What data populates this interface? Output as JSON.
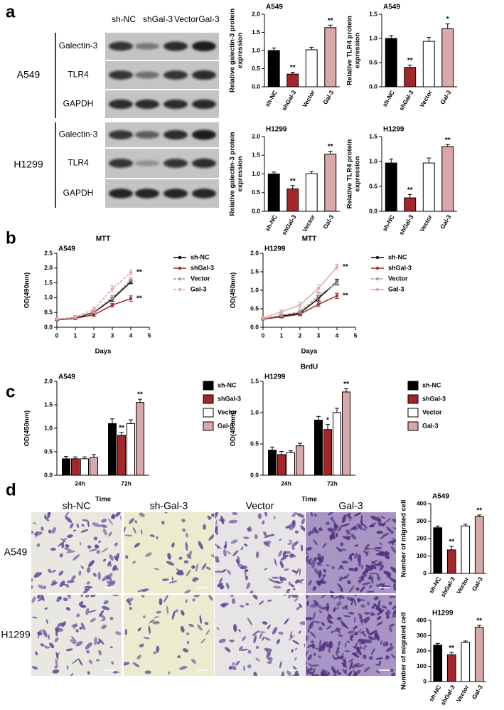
{
  "panels": {
    "a": {
      "letter": "a",
      "lanes": [
        "sh-NC",
        "shGal-3",
        "Vector",
        "Gal-3"
      ],
      "groups": [
        {
          "cell_line": "A549",
          "rows": [
            "Galectin-3",
            "TLR4",
            "GAPDH"
          ]
        },
        {
          "cell_line": "H1299",
          "rows": [
            "Galectin-3",
            "TLR4",
            "GAPDH"
          ]
        }
      ]
    },
    "b": {
      "letter": "b"
    },
    "c": {
      "letter": "c"
    },
    "d": {
      "letter": "d",
      "columns": [
        "sh-NC",
        "sh-Gal-3",
        "Vector",
        "Gal-3"
      ],
      "rows": [
        "A549",
        "H1299"
      ]
    }
  },
  "chart_data": [
    {
      "type": "bar",
      "title": "A549",
      "ylabel": [
        "Relative galectin-3 protein",
        "expression"
      ],
      "categories": [
        "sh-NC",
        "shGal-3",
        "Vector",
        "Gal-3"
      ],
      "values": [
        1.0,
        0.35,
        1.02,
        1.63
      ],
      "errors": [
        0.07,
        0.05,
        0.07,
        0.07
      ],
      "colors": [
        "#000000",
        "#a3262a",
        "#ffffff",
        "#d9a9a9"
      ],
      "ylim": [
        0,
        2
      ],
      "yticks": [
        {
          "value": 0,
          "label": "0.0"
        },
        0.5,
        {
          "value": 1,
          "label": "1.0"
        },
        1.5,
        {
          "value": 2,
          "label": "2.0"
        }
      ],
      "annotations": [
        {
          "index": 1,
          "text": "**"
        },
        {
          "index": 3,
          "text": "**"
        }
      ]
    },
    {
      "type": "bar",
      "title": "A549",
      "ylabel": [
        "Relative TLR4 protein",
        "expression"
      ],
      "categories": [
        "sh-NC",
        "shGal-3",
        "Vector",
        "Gal-3"
      ],
      "values": [
        1.0,
        0.4,
        0.94,
        1.2
      ],
      "errors": [
        0.06,
        0.05,
        0.08,
        0.1
      ],
      "colors": [
        "#000000",
        "#a3262a",
        "#ffffff",
        "#d9a9a9"
      ],
      "ylim": [
        0,
        1.5
      ],
      "yticks": [
        {
          "value": 0,
          "label": "0.0"
        },
        0.5,
        {
          "value": 1,
          "label": "1.0"
        },
        1.5
      ],
      "annotations": [
        {
          "index": 1,
          "text": "**"
        },
        {
          "index": 3,
          "text": "*"
        }
      ]
    },
    {
      "type": "bar",
      "title": "H1299",
      "ylabel": [
        "Relative galectin-3 protein",
        "expression"
      ],
      "categories": [
        "sh-NC",
        "shGal-3",
        "Vector",
        "Gal-3"
      ],
      "values": [
        1.0,
        0.6,
        1.01,
        1.53
      ],
      "errors": [
        0.05,
        0.09,
        0.05,
        0.08
      ],
      "colors": [
        "#000000",
        "#a3262a",
        "#ffffff",
        "#d9a9a9"
      ],
      "ylim": [
        0,
        2
      ],
      "yticks": [
        {
          "value": 0,
          "label": "0.0"
        },
        0.5,
        {
          "value": 1,
          "label": "1.0"
        },
        1.5,
        {
          "value": 2,
          "label": "2.0"
        }
      ],
      "annotations": [
        {
          "index": 1,
          "text": "**"
        },
        {
          "index": 3,
          "text": "**"
        }
      ]
    },
    {
      "type": "bar",
      "title": "H1299",
      "ylabel": [
        "Relative TLR4 protein",
        "expression"
      ],
      "categories": [
        "sh-NC",
        "shGal-3",
        "Vector",
        "Gal-3"
      ],
      "values": [
        0.97,
        0.27,
        0.97,
        1.3
      ],
      "errors": [
        0.08,
        0.07,
        0.1,
        0.04
      ],
      "colors": [
        "#000000",
        "#a3262a",
        "#ffffff",
        "#d9a9a9"
      ],
      "ylim": [
        0,
        1.5
      ],
      "yticks": [
        {
          "value": 0,
          "label": "0.0"
        },
        0.5,
        {
          "value": 1,
          "label": "1.0"
        },
        1.5
      ],
      "annotations": [
        {
          "index": 1,
          "text": "**"
        },
        {
          "index": 3,
          "text": "**"
        }
      ]
    },
    {
      "type": "line",
      "title": "MTT",
      "subtitle": "A549",
      "xlabel": "Days",
      "ylabel": [
        "OD(490nm)"
      ],
      "x": [
        0,
        1,
        2,
        3,
        4
      ],
      "xlim": [
        0,
        5
      ],
      "xticks": [
        0,
        1,
        2,
        3,
        4,
        5
      ],
      "ylim": [
        0,
        2.5
      ],
      "yticks": [
        {
          "value": 0,
          "label": "0.0"
        },
        0.5,
        {
          "value": 1,
          "label": "1.0"
        },
        1.5,
        {
          "value": 2,
          "label": "2.0"
        },
        2.5
      ],
      "legend": "right",
      "series": [
        {
          "name": "sh-NC",
          "color": "#000000",
          "dash": false,
          "values": [
            0.25,
            0.3,
            0.5,
            0.95,
            1.53
          ],
          "errors": [
            0.02,
            0.03,
            0.05,
            0.07,
            0.06
          ]
        },
        {
          "name": "shGal-3",
          "color": "#a3262a",
          "dash": false,
          "values": [
            0.25,
            0.3,
            0.42,
            0.75,
            0.97
          ],
          "errors": [
            0.02,
            0.03,
            0.05,
            0.06,
            0.09
          ]
        },
        {
          "name": "Vector",
          "color": "#9a9a9a",
          "dash": true,
          "values": [
            0.27,
            0.33,
            0.52,
            1.0,
            1.6
          ],
          "errors": [
            0.02,
            0.03,
            0.05,
            0.07,
            0.08
          ]
        },
        {
          "name": "Gal-3",
          "color": "#e2a6a6",
          "dash": true,
          "values": [
            0.28,
            0.35,
            0.6,
            1.3,
            1.85
          ],
          "errors": [
            0.03,
            0.05,
            0.08,
            0.1,
            0.08
          ]
        }
      ],
      "annotations": [
        {
          "series": 3,
          "index": 4,
          "text": "**"
        },
        {
          "series": 1,
          "index": 4,
          "text": "**"
        }
      ]
    },
    {
      "type": "line",
      "title": "MTT",
      "subtitle": "H1299",
      "xlabel": "Days",
      "ylabel": [
        "OD(490nm)"
      ],
      "x": [
        0,
        1,
        2,
        3,
        4
      ],
      "xlim": [
        0,
        5
      ],
      "xticks": [
        0,
        1,
        2,
        3,
        4,
        5
      ],
      "ylim": [
        0,
        2
      ],
      "yticks": [
        {
          "value": 0,
          "label": "0.0"
        },
        0.5,
        {
          "value": 1,
          "label": "1.0"
        },
        1.5,
        {
          "value": 2,
          "label": "2.0"
        }
      ],
      "legend": "right",
      "series": [
        {
          "name": "sh-NC",
          "color": "#000000",
          "dash": false,
          "values": [
            0.22,
            0.3,
            0.38,
            0.78,
            1.23
          ],
          "errors": [
            0.02,
            0.03,
            0.04,
            0.07,
            0.07
          ]
        },
        {
          "name": "shGal-3",
          "color": "#a3262a",
          "dash": false,
          "values": [
            0.22,
            0.28,
            0.35,
            0.62,
            0.85
          ],
          "errors": [
            0.02,
            0.03,
            0.04,
            0.06,
            0.07
          ]
        },
        {
          "name": "Vector",
          "color": "#9a9a9a",
          "dash": true,
          "values": [
            0.23,
            0.32,
            0.42,
            0.85,
            1.2
          ],
          "errors": [
            0.02,
            0.03,
            0.05,
            0.08,
            0.07
          ]
        },
        {
          "name": "Gal-3",
          "color": "#e2a6a6",
          "dash": false,
          "values": [
            0.25,
            0.42,
            0.6,
            1.05,
            1.63
          ],
          "errors": [
            0.02,
            0.05,
            0.08,
            0.1,
            0.07
          ]
        }
      ],
      "annotations": [
        {
          "series": 3,
          "index": 4,
          "text": "**"
        },
        {
          "series": 1,
          "index": 4,
          "text": "**"
        }
      ]
    },
    {
      "type": "bar",
      "subtitle": "A549",
      "xlabel": "Time",
      "ylabel": [
        "OD(450nm)"
      ],
      "categories": [
        "24h",
        "72h"
      ],
      "ylim": [
        0,
        2
      ],
      "yticks": [
        {
          "value": 0,
          "label": "0.0"
        },
        0.5,
        {
          "value": 1,
          "label": "1.0"
        },
        1.5,
        {
          "value": 2,
          "label": "2.0"
        }
      ],
      "legend": "right",
      "series": [
        {
          "name": "sh-NC",
          "color": "#000000",
          "values": [
            0.35,
            1.1
          ],
          "errors": [
            0.05,
            0.1
          ]
        },
        {
          "name": "shGal-3",
          "color": "#a3262a",
          "values": [
            0.35,
            0.85
          ],
          "errors": [
            0.04,
            0.06
          ]
        },
        {
          "name": "Vector",
          "color": "#ffffff",
          "values": [
            0.35,
            1.1
          ],
          "errors": [
            0.04,
            0.08
          ]
        },
        {
          "name": "Gal-3",
          "color": "#d9a9a9",
          "values": [
            0.38,
            1.55
          ],
          "errors": [
            0.06,
            0.07
          ]
        }
      ],
      "annotations": [
        {
          "series": 1,
          "index": 1,
          "text": "**"
        },
        {
          "series": 3,
          "index": 1,
          "text": "**"
        }
      ]
    },
    {
      "type": "bar",
      "title": "BrdU",
      "subtitle": "H1299",
      "xlabel": "Time",
      "ylabel": [
        "OD(450nm)"
      ],
      "categories": [
        "24h",
        "72h"
      ],
      "ylim": [
        0,
        1.5
      ],
      "yticks": [
        {
          "value": 0,
          "label": "0.0"
        },
        0.5,
        {
          "value": 1,
          "label": "1.0"
        },
        1.5
      ],
      "legend": "right",
      "series": [
        {
          "name": "sh-NC",
          "color": "#000000",
          "values": [
            0.4,
            0.88
          ],
          "errors": [
            0.05,
            0.06
          ]
        },
        {
          "name": "shGal-3",
          "color": "#a3262a",
          "values": [
            0.33,
            0.73
          ],
          "errors": [
            0.05,
            0.08
          ]
        },
        {
          "name": "Vector",
          "color": "#ffffff",
          "values": [
            0.36,
            1.0
          ],
          "errors": [
            0.03,
            0.07
          ]
        },
        {
          "name": "Gal-3",
          "color": "#d9a9a9",
          "values": [
            0.47,
            1.33
          ],
          "errors": [
            0.04,
            0.05
          ]
        }
      ],
      "annotations": [
        {
          "series": 1,
          "index": 1,
          "text": "*"
        },
        {
          "series": 3,
          "index": 1,
          "text": "**"
        }
      ]
    },
    {
      "type": "bar",
      "title": "A549",
      "ylabel": [
        "Number of migrated cell"
      ],
      "categories": [
        "sh-NC",
        "shGal-3",
        "Vector",
        "Gal-3"
      ],
      "values": [
        262,
        135,
        272,
        327
      ],
      "errors": [
        10,
        20,
        10,
        8
      ],
      "colors": [
        "#000000",
        "#a3262a",
        "#ffffff",
        "#d9a9a9"
      ],
      "ylim": [
        0,
        400
      ],
      "yticks": [
        0,
        100,
        200,
        300,
        400
      ],
      "annotations": [
        {
          "index": 1,
          "text": "**"
        },
        {
          "index": 3,
          "text": "**"
        }
      ]
    },
    {
      "type": "bar",
      "title": "H1299",
      "ylabel": [
        "Number of migrated cell"
      ],
      "categories": [
        "sh-NC",
        "shGal-3",
        "Vector",
        "Gal-3"
      ],
      "values": [
        238,
        175,
        255,
        355
      ],
      "errors": [
        12,
        15,
        10,
        12
      ],
      "colors": [
        "#000000",
        "#a3262a",
        "#ffffff",
        "#d9a9a9"
      ],
      "ylim": [
        0,
        400
      ],
      "yticks": [
        0,
        100,
        200,
        300,
        400
      ],
      "annotations": [
        {
          "index": 1,
          "text": "**"
        },
        {
          "index": 3,
          "text": "**"
        }
      ]
    }
  ]
}
